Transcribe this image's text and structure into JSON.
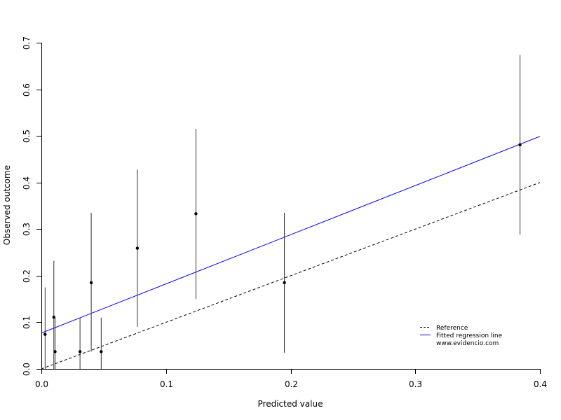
{
  "chart_data": {
    "type": "scatter",
    "xlabel": "Predicted value",
    "ylabel": "Observed outcome",
    "xlim": [
      0,
      0.4
    ],
    "ylim": [
      0,
      0.7
    ],
    "xticks": [
      0.0,
      0.1,
      0.2,
      0.3,
      0.4
    ],
    "xtick_labels": [
      "0.0",
      "0.1",
      "0.2",
      "0.3",
      "0.4"
    ],
    "yticks": [
      0.0,
      0.1,
      0.2,
      0.3,
      0.4,
      0.5,
      0.6,
      0.7
    ],
    "ytick_labels": [
      "0.0",
      "0.1",
      "0.2",
      "0.3",
      "0.4",
      "0.5",
      "0.6",
      "0.7"
    ],
    "grid": false,
    "legend_position": "bottom-right",
    "points": [
      {
        "x": 0.003,
        "y": 0.074,
        "lower": 0.0,
        "upper": 0.175
      },
      {
        "x": 0.01,
        "y": 0.111,
        "lower": 0.0,
        "upper": 0.232
      },
      {
        "x": 0.011,
        "y": 0.037,
        "lower": 0.0,
        "upper": 0.11
      },
      {
        "x": 0.031,
        "y": 0.037,
        "lower": 0.0,
        "upper": 0.11
      },
      {
        "x": 0.04,
        "y": 0.185,
        "lower": 0.037,
        "upper": 0.335
      },
      {
        "x": 0.048,
        "y": 0.037,
        "lower": 0.0,
        "upper": 0.11
      },
      {
        "x": 0.077,
        "y": 0.259,
        "lower": 0.09,
        "upper": 0.428
      },
      {
        "x": 0.124,
        "y": 0.333,
        "lower": 0.15,
        "upper": 0.515
      },
      {
        "x": 0.195,
        "y": 0.185,
        "lower": 0.035,
        "upper": 0.335
      },
      {
        "x": 0.384,
        "y": 0.481,
        "lower": 0.288,
        "upper": 0.674
      }
    ],
    "series": [
      {
        "name": "Reference",
        "style": "dashed",
        "color": "#000000",
        "intercept": 0.0,
        "slope": 1.0
      },
      {
        "name": "Fitted regression line",
        "style": "solid",
        "color": "#0000ff",
        "intercept": 0.077,
        "slope": 1.055
      }
    ],
    "legend": {
      "entries": [
        "Reference",
        "Fitted regression line"
      ],
      "note": "www.evidencio.com"
    }
  }
}
